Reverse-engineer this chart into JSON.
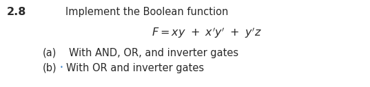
{
  "problem_number": "2.8",
  "intro_text": "Implement the Boolean function",
  "formula_latex": "$F = xy\\ +\\ x'y'\\ +\\ y'z$",
  "part_a_label": "(a)",
  "part_a_text": "With AND, OR, and inverter gates",
  "part_b_label": "(b)",
  "part_b_bullet": "•",
  "part_b_text": "With OR and inverter gates",
  "background_color": "#ffffff",
  "text_color": "#2a2a2a",
  "font_size_number": 11.5,
  "font_size_main": 10.5,
  "font_size_formula": 11.5
}
